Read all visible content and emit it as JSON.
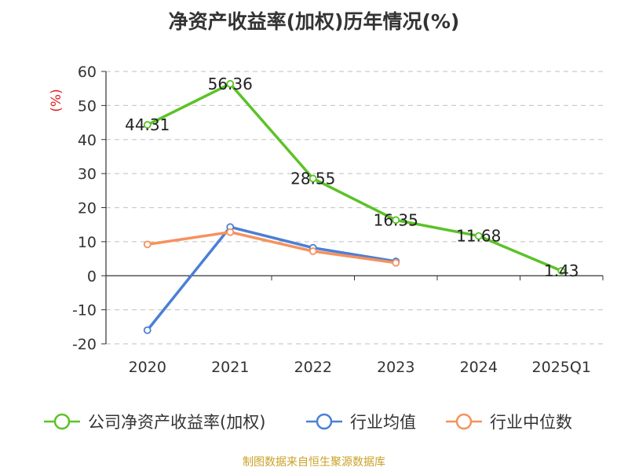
{
  "chart_data": {
    "type": "line",
    "title": "净资产收益率(加权)历年情况(%)",
    "ylabel": "(%)",
    "xlabel": "",
    "categories": [
      "2020",
      "2021",
      "2022",
      "2023",
      "2024",
      "2025Q1"
    ],
    "ylim": [
      -20,
      60
    ],
    "yticks": [
      60,
      50,
      40,
      30,
      20,
      10,
      0,
      -10,
      -20
    ],
    "grid": "horizontal dashed",
    "legend_position": "bottom",
    "series": [
      {
        "name": "公司净资产收益率(加权)",
        "color": "#5cc228",
        "values": [
          44.31,
          56.36,
          28.55,
          16.35,
          11.68,
          1.43
        ],
        "labels": [
          "44.31",
          "56.36",
          "28.55",
          "16.35",
          "11.68",
          "1.43"
        ]
      },
      {
        "name": "行业均值",
        "color": "#4a7fd6",
        "values": [
          -16.0,
          14.3,
          8.2,
          4.2,
          null,
          null
        ]
      },
      {
        "name": "行业中位数",
        "color": "#f5925e",
        "values": [
          9.2,
          12.8,
          7.2,
          3.8,
          null,
          null
        ]
      }
    ]
  },
  "source": "制图数据来自恒生聚源数据库"
}
